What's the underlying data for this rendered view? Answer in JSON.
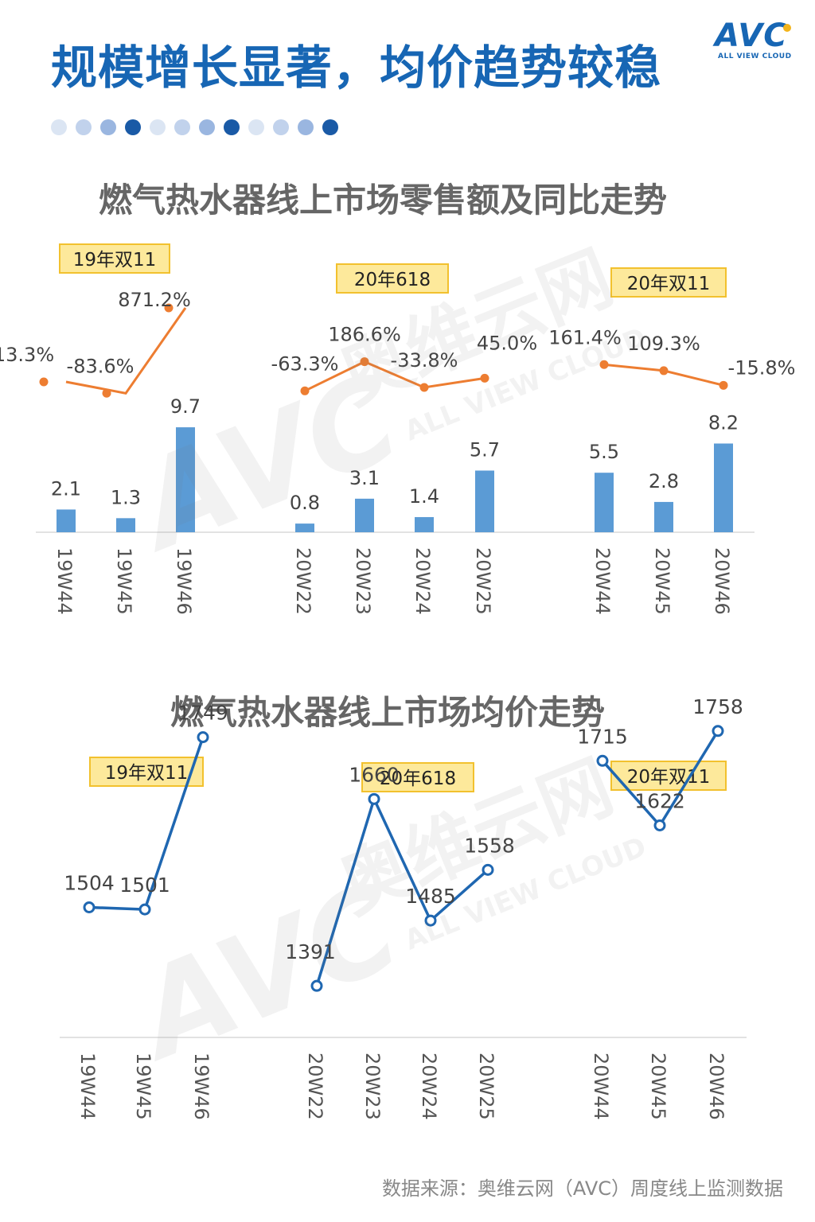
{
  "page": {
    "title": "规模增长显著，均价趋势较稳",
    "logo": {
      "text": "AVC",
      "subtitle": "ALL VIEW CLOUD"
    },
    "watermark": {
      "brand": "AVC",
      "cn": "奥维云网",
      "en": "ALL VIEW CLOUD"
    },
    "source": "数据来源：奥维云网（AVC）周度线上监测数据",
    "colors": {
      "title": "#1766b4",
      "bar": "#5b9bd5",
      "yoy_line": "#ed7d31",
      "price_line": "#1f67b1",
      "label_box": "#fde99b",
      "label_border": "#f2c12e",
      "dots": [
        "#dbe5f3",
        "#c1d2ec",
        "#9ab6e0",
        "#1a5aa6",
        "#dbe5f3",
        "#c1d2ec",
        "#9ab6e0",
        "#1a5aa6",
        "#dbe5f3",
        "#c1d2ec",
        "#9ab6e0",
        "#1a5aa6"
      ]
    }
  },
  "chart_data": [
    {
      "type": "bar",
      "title": "燃气热水器线上市场零售额及同比走势",
      "groups": [
        "19年双11",
        "20年618",
        "20年双11"
      ],
      "categories": [
        "19W44",
        "19W45",
        "19W46",
        "20W22",
        "20W23",
        "20W24",
        "20W25",
        "20W44",
        "20W45",
        "20W46"
      ],
      "group_of_category": [
        0,
        0,
        0,
        1,
        1,
        1,
        1,
        2,
        2,
        2
      ],
      "series": [
        {
          "kind": "bar",
          "values": [
            2.1,
            1.3,
            9.7,
            0.8,
            3.1,
            1.4,
            5.7,
            5.5,
            2.8,
            8.2
          ]
        },
        {
          "kind": "line",
          "values": [
            13.3,
            -83.6,
            871.2,
            -63.3,
            186.6,
            -33.8,
            45.0,
            161.4,
            109.3,
            -15.8
          ],
          "labels": [
            "13.3%",
            "-83.6%",
            "871.2%",
            "-63.3%",
            "186.6%",
            "-33.8%",
            "45.0%",
            "161.4%",
            "109.3%",
            "-15.8%"
          ]
        }
      ]
    },
    {
      "type": "line",
      "title": "燃气热水器线上市场均价走势",
      "groups": [
        "19年双11",
        "20年618",
        "20年双11"
      ],
      "categories": [
        "19W44",
        "19W45",
        "19W46",
        "20W22",
        "20W23",
        "20W24",
        "20W25",
        "20W44",
        "20W45",
        "20W46"
      ],
      "group_of_category": [
        0,
        0,
        0,
        1,
        1,
        1,
        1,
        2,
        2,
        2
      ],
      "series": [
        {
          "kind": "line",
          "values": [
            1504,
            1501,
            1749,
            1391,
            1660,
            1485,
            1558,
            1715,
            1622,
            1758
          ]
        }
      ]
    }
  ]
}
